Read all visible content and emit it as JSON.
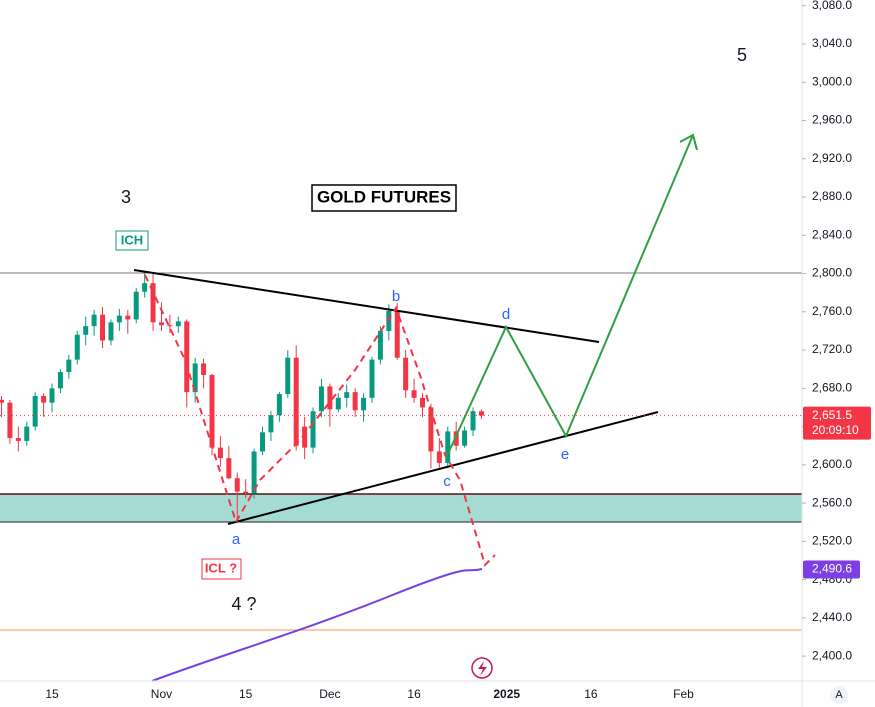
{
  "chart_data": {
    "type": "candlestick",
    "title": "GOLD FUTURES",
    "annotations": [
      "3",
      "5",
      "ICH",
      "ICL ?",
      "4 ?",
      "a",
      "b",
      "c",
      "d",
      "e"
    ],
    "categories": [
      null,
      null,
      null,
      null,
      null,
      null,
      "15",
      null,
      null,
      null,
      null,
      null,
      null,
      null,
      null,
      null,
      null,
      null,
      null,
      "Nov",
      null,
      null,
      null,
      null,
      null,
      null,
      null,
      null,
      null,
      "15",
      null,
      null,
      null,
      null,
      null,
      null,
      null,
      null,
      null,
      "Dec",
      null,
      null,
      null,
      null,
      null,
      null,
      null,
      null,
      null,
      "16",
      null,
      null,
      null,
      null,
      null,
      null,
      null,
      null,
      null,
      null,
      "2025",
      null,
      null,
      null,
      null,
      null,
      null,
      null,
      null,
      null,
      "16",
      null,
      null,
      null,
      null,
      null,
      null,
      null,
      null,
      null,
      null,
      "Feb",
      null,
      null,
      null,
      null,
      null,
      null,
      null,
      null,
      null,
      null,
      null,
      null,
      null
    ],
    "open": [
      2668,
      2665,
      2628,
      2625,
      2640,
      2672,
      2665,
      2680,
      2697,
      2710,
      2736,
      2745,
      2757,
      2730,
      2749,
      2756,
      2752,
      2781,
      2790,
      2749,
      2746,
      2745,
      2750,
      2676,
      2706,
      2694,
      2618,
      2607,
      2586,
      2572,
      2570,
      2614,
      2634,
      2652,
      2674,
      2712,
      2640,
      2618,
      2656,
      2682,
      2658,
      2670,
      2676,
      2657,
      2670,
      2710,
      2740,
      2761,
      2712,
      2678,
      2670,
      2660,
      2614,
      2602,
      2635,
      2620,
      2636,
      2656,
      null,
      null,
      null,
      null,
      null,
      null,
      null,
      null,
      null,
      null,
      null,
      null,
      null,
      null,
      null,
      null,
      null,
      null,
      null,
      null,
      null,
      null,
      null,
      null,
      null,
      null,
      null,
      null,
      null,
      null,
      null,
      null,
      null,
      null,
      null,
      null,
      null
    ],
    "high": [
      2672,
      2668,
      2640,
      2645,
      2676,
      2675,
      2685,
      2700,
      2715,
      2740,
      2755,
      2762,
      2765,
      2752,
      2763,
      2762,
      2785,
      2801,
      2800,
      2770,
      2757,
      2755,
      2752,
      2712,
      2711,
      2695,
      2630,
      2620,
      2592,
      2585,
      2617,
      2640,
      2656,
      2676,
      2720,
      2725,
      2650,
      2660,
      2690,
      2685,
      2675,
      2684,
      2680,
      2675,
      2713,
      2745,
      2768,
      2769,
      2720,
      2690,
      2675,
      2664,
      2628,
      2640,
      2645,
      2640,
      2660,
      2658,
      null,
      null,
      null,
      null,
      null,
      null,
      null,
      null,
      null,
      null,
      null,
      null,
      null,
      null,
      null,
      null,
      null,
      null,
      null,
      null,
      null,
      null,
      null,
      null,
      null,
      null,
      null,
      null,
      null,
      null,
      null,
      null,
      null,
      null,
      null,
      null,
      null
    ],
    "low": [
      2650,
      2622,
      2614,
      2620,
      2636,
      2650,
      2655,
      2675,
      2690,
      2705,
      2725,
      2735,
      2722,
      2725,
      2740,
      2737,
      2748,
      2775,
      2740,
      2740,
      2738,
      2738,
      2660,
      2665,
      2680,
      2610,
      2598,
      2585,
      2541,
      2565,
      2565,
      2610,
      2625,
      2645,
      2670,
      2615,
      2606,
      2612,
      2650,
      2640,
      2655,
      2660,
      2650,
      2645,
      2665,
      2705,
      2730,
      2710,
      2670,
      2665,
      2650,
      2596,
      2597,
      2598,
      2615,
      2618,
      2630,
      2648,
      null,
      null,
      null,
      null,
      null,
      null,
      null,
      null,
      null,
      null,
      null,
      null,
      null,
      null,
      null,
      null,
      null,
      null,
      null,
      null,
      null,
      null,
      null,
      null,
      null,
      null,
      null,
      null,
      null,
      null,
      null,
      null,
      null,
      null,
      null,
      null,
      null
    ],
    "close": [
      2665,
      2628,
      2625,
      2640,
      2672,
      2665,
      2680,
      2697,
      2710,
      2736,
      2745,
      2757,
      2730,
      2749,
      2756,
      2752,
      2781,
      2790,
      2749,
      2746,
      2745,
      2750,
      2676,
      2706,
      2694,
      2618,
      2607,
      2586,
      2572,
      2570,
      2614,
      2634,
      2652,
      2674,
      2712,
      2620,
      2618,
      2656,
      2682,
      2658,
      2670,
      2676,
      2657,
      2670,
      2710,
      2740,
      2761,
      2712,
      2678,
      2670,
      2660,
      2614,
      2602,
      2635,
      2620,
      2636,
      2656,
      2651.5,
      null,
      null,
      null,
      null,
      null,
      null,
      null,
      null,
      null,
      null,
      null,
      null,
      null,
      null,
      null,
      null,
      null,
      null,
      null,
      null,
      null,
      null,
      null,
      null,
      null,
      null,
      null,
      null,
      null,
      null,
      null,
      null,
      null,
      null,
      null,
      null,
      null
    ],
    "up_color": "#089981",
    "down_color": "#f23645",
    "ylim": [
      2374,
      3086
    ],
    "yticks": [
      {
        "value": 2400,
        "label": "2,400.0"
      },
      {
        "value": 2440,
        "label": "2,440.0"
      },
      {
        "value": 2480,
        "label": "2,480.0"
      },
      {
        "value": 2520,
        "label": "2,520.0"
      },
      {
        "value": 2560,
        "label": "2,560.0"
      },
      {
        "value": 2600,
        "label": "2,600.0"
      },
      {
        "value": 2640,
        "label": "2,640.0"
      },
      {
        "value": 2680,
        "label": "2,680.0"
      },
      {
        "value": 2720,
        "label": "2,720.0"
      },
      {
        "value": 2760,
        "label": "2,760.0"
      },
      {
        "value": 2800,
        "label": "2,800.0"
      },
      {
        "value": 2840,
        "label": "2,840.0"
      },
      {
        "value": 2880,
        "label": "2,880.0"
      },
      {
        "value": 2920,
        "label": "2,920.0"
      },
      {
        "value": 2960,
        "label": "2,960.0"
      },
      {
        "value": 3000,
        "label": "3,000.0"
      },
      {
        "value": 3040,
        "label": "3,040.0"
      },
      {
        "value": 3080,
        "label": "3,080.0"
      }
    ],
    "last_price": {
      "value": 2651.5,
      "label": "2,651.5"
    },
    "countdown": "20:09:10",
    "indicator_price": {
      "value": 2490.6,
      "label": "2,490.6"
    },
    "indicator_color": "#7b3fe4",
    "auto_button": "A"
  }
}
